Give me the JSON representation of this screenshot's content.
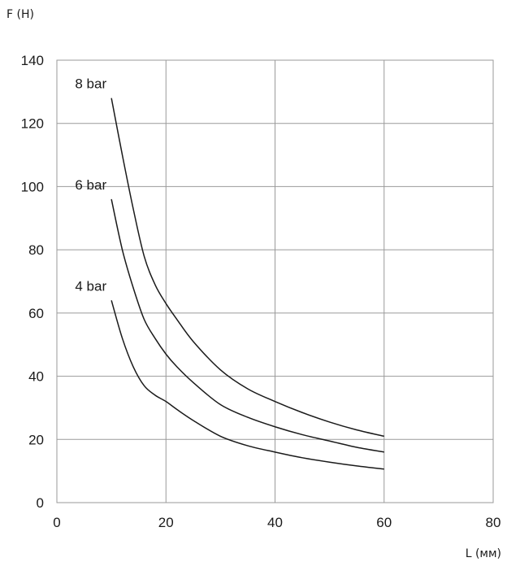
{
  "chart_data": {
    "type": "line",
    "title": "",
    "xlabel": "L (мм)",
    "ylabel": "F (Н)",
    "xlim": [
      0,
      80
    ],
    "ylim": [
      0,
      140
    ],
    "xticks": [
      0,
      20,
      40,
      60,
      80
    ],
    "yticks": [
      0,
      20,
      40,
      60,
      80,
      100,
      120,
      140
    ],
    "grid": true,
    "series": [
      {
        "name": "8 bar",
        "x": [
          10,
          12,
          14,
          16,
          18,
          20,
          22,
          25,
          30,
          35,
          40,
          45,
          50,
          55,
          60
        ],
        "y": [
          128,
          110,
          93,
          78,
          69,
          63,
          58,
          51,
          42,
          36,
          32,
          28.5,
          25.5,
          23,
          21
        ]
      },
      {
        "name": "6 bar",
        "x": [
          10,
          12,
          14,
          16,
          18,
          20,
          22,
          25,
          30,
          35,
          40,
          45,
          50,
          55,
          60
        ],
        "y": [
          96,
          80,
          68,
          58,
          52,
          47,
          43,
          38,
          31,
          27,
          24,
          21.5,
          19.5,
          17.5,
          16
        ]
      },
      {
        "name": "4 bar",
        "x": [
          10,
          12,
          14,
          16,
          18,
          20,
          22,
          25,
          30,
          35,
          40,
          45,
          50,
          55,
          60
        ],
        "y": [
          64,
          52,
          43,
          37,
          34,
          32,
          29.5,
          26,
          21,
          18,
          16,
          14.2,
          12.8,
          11.6,
          10.6
        ]
      }
    ]
  }
}
